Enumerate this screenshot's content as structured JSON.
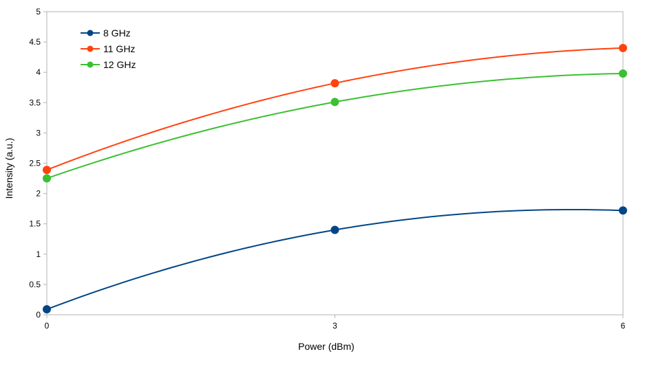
{
  "chart_data": {
    "type": "line",
    "title": "",
    "xlabel": "Power (dBm)",
    "ylabel": "Intensity (a.u.)",
    "x": [
      0,
      3,
      6
    ],
    "xticks": [
      "0",
      "3",
      "6"
    ],
    "xlim": [
      0,
      6
    ],
    "ylim": [
      0,
      5
    ],
    "yticks": [
      "0",
      "0.5",
      "1",
      "1.5",
      "2",
      "2.5",
      "3",
      "3.5",
      "4",
      "4.5",
      "5"
    ],
    "grid": false,
    "legend_position": "top-left",
    "smooth": true,
    "series": [
      {
        "name": "8 GHz",
        "color": "#004586",
        "values": [
          0.09,
          1.4,
          1.72
        ]
      },
      {
        "name": "11 GHz",
        "color": "#ff420e",
        "values": [
          2.39,
          3.82,
          4.4
        ]
      },
      {
        "name": "12 GHz",
        "color": "#3bc032",
        "values": [
          2.25,
          3.51,
          3.98
        ]
      }
    ]
  }
}
